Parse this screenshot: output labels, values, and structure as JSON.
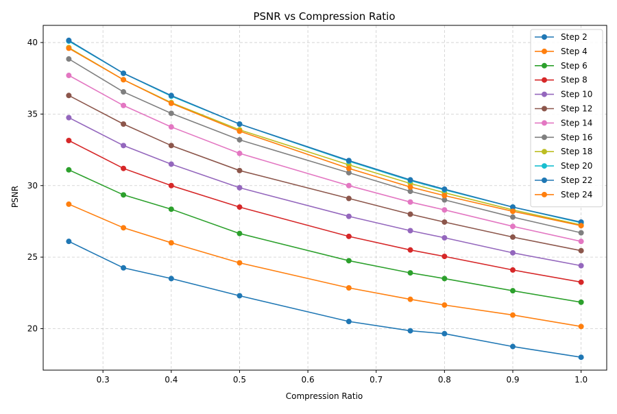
{
  "chart_data": {
    "type": "line",
    "title": "PSNR vs Compression Ratio",
    "xlabel": "Compression Ratio",
    "ylabel": "PSNR",
    "x": [
      0.25,
      0.33,
      0.4,
      0.5,
      0.66,
      0.75,
      0.8,
      0.9,
      1.0
    ],
    "xlim": [
      0.2125,
      1.0375
    ],
    "ylim": [
      17.1,
      41.2
    ],
    "xticks": [
      0.3,
      0.4,
      0.5,
      0.6,
      0.7,
      0.8,
      0.9,
      1.0
    ],
    "xtick_labels": [
      "0.3",
      "0.4",
      "0.5",
      "0.6",
      "0.7",
      "0.8",
      "0.9",
      "1.0"
    ],
    "yticks": [
      20,
      25,
      30,
      35,
      40
    ],
    "ytick_labels": [
      "20",
      "25",
      "30",
      "35",
      "40"
    ],
    "grid": true,
    "legend_position": "top-right",
    "series": [
      {
        "name": "Step 2",
        "color": "#1f77b4",
        "values": [
          26.1,
          24.25,
          23.5,
          22.3,
          20.5,
          19.85,
          19.65,
          18.75,
          18.0
        ]
      },
      {
        "name": "Step 4",
        "color": "#ff7f0e",
        "values": [
          28.7,
          27.05,
          26.0,
          24.6,
          22.85,
          22.05,
          21.65,
          20.95,
          20.15
        ]
      },
      {
        "name": "Step 6",
        "color": "#2ca02c",
        "values": [
          31.1,
          29.35,
          28.35,
          26.65,
          24.75,
          23.9,
          23.5,
          22.65,
          21.85
        ]
      },
      {
        "name": "Step 8",
        "color": "#d62728",
        "values": [
          33.15,
          31.2,
          30.0,
          28.5,
          26.45,
          25.5,
          25.05,
          24.1,
          23.25
        ]
      },
      {
        "name": "Step 10",
        "color": "#9467bd",
        "values": [
          34.75,
          32.8,
          31.5,
          29.85,
          27.85,
          26.85,
          26.35,
          25.3,
          24.4
        ]
      },
      {
        "name": "Step 12",
        "color": "#8c564b",
        "values": [
          36.3,
          34.3,
          32.8,
          31.05,
          29.1,
          28.0,
          27.45,
          26.4,
          25.45
        ]
      },
      {
        "name": "Step 14",
        "color": "#e377c2",
        "values": [
          37.7,
          35.6,
          34.1,
          32.25,
          30.0,
          28.85,
          28.3,
          27.15,
          26.1
        ]
      },
      {
        "name": "Step 16",
        "color": "#7f7f7f",
        "values": [
          38.85,
          36.55,
          35.05,
          33.2,
          30.9,
          29.6,
          29.0,
          27.8,
          26.7
        ]
      },
      {
        "name": "Step 18",
        "color": "#bcbd22",
        "values": [
          39.65,
          37.4,
          35.8,
          33.9,
          31.45,
          30.15,
          29.5,
          28.3,
          27.25
        ]
      },
      {
        "name": "Step 20",
        "color": "#17becf",
        "values": [
          40.1,
          37.85,
          36.25,
          34.3,
          31.7,
          30.35,
          29.7,
          28.5,
          27.4
        ]
      },
      {
        "name": "Step 22",
        "color": "#1f77b4",
        "values": [
          40.15,
          37.85,
          36.3,
          34.3,
          31.75,
          30.4,
          29.75,
          28.5,
          27.45
        ]
      },
      {
        "name": "Step 24",
        "color": "#ff7f0e",
        "values": [
          39.6,
          37.4,
          35.75,
          33.8,
          31.2,
          29.9,
          29.3,
          28.2,
          27.2
        ]
      }
    ]
  }
}
